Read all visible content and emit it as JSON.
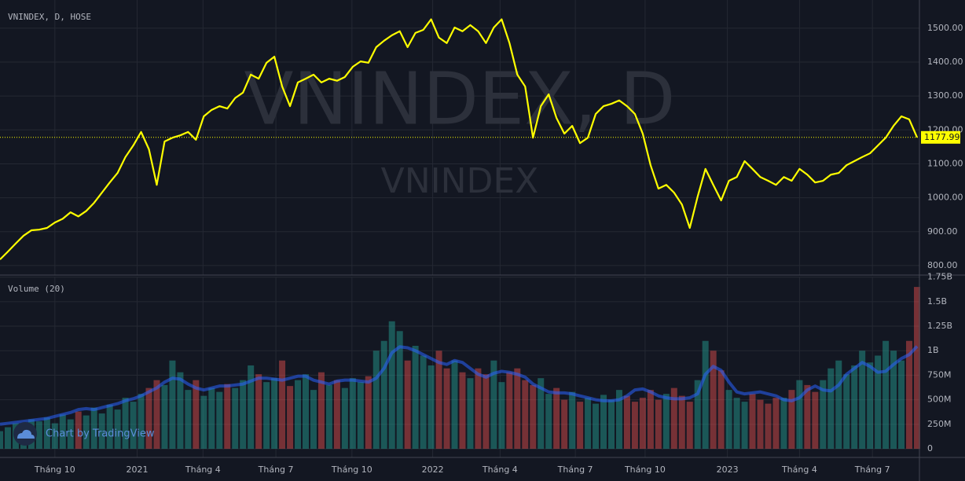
{
  "header": {
    "symbol": "VNINDEX, D, HOSE",
    "watermark": "VNINDEX, D",
    "watermark_sub": "VNINDEX",
    "branding": "Chart by TradingView"
  },
  "chart_data": [
    {
      "type": "line",
      "color": "#ffff00",
      "grid": true,
      "x": [
        0,
        1,
        2,
        3,
        4,
        5,
        6,
        7,
        8,
        9,
        10,
        11,
        12,
        13,
        14,
        15,
        16,
        17,
        18,
        19,
        20,
        21,
        22,
        23,
        24,
        25,
        26,
        27,
        28,
        29,
        30,
        31,
        32,
        33,
        34,
        35,
        36,
        37,
        38,
        39,
        40,
        41,
        42,
        43,
        44,
        45,
        46,
        47,
        48,
        49,
        50,
        51,
        52,
        53,
        54,
        55,
        56,
        57,
        58,
        59,
        60,
        61,
        62,
        63,
        64,
        65,
        66,
        67,
        68,
        69,
        70,
        71,
        72,
        73,
        74,
        75,
        76,
        77,
        78,
        79,
        80,
        81,
        82,
        83,
        84,
        85,
        86,
        87,
        88,
        89,
        90,
        91,
        92,
        93,
        94,
        95,
        96,
        97,
        98,
        99,
        100,
        101,
        102,
        103,
        104,
        105,
        106,
        107,
        108,
        109,
        110,
        111,
        112,
        113,
        114,
        115,
        116,
        117
      ],
      "values": [
        818,
        841,
        865,
        888,
        904,
        906,
        911,
        927,
        938,
        957,
        945,
        961,
        985,
        1015,
        1045,
        1073,
        1120,
        1154,
        1194,
        1143,
        1038,
        1166,
        1177,
        1184,
        1194,
        1171,
        1240,
        1259,
        1270,
        1263,
        1294,
        1310,
        1363,
        1351,
        1398,
        1416,
        1328,
        1270,
        1340,
        1351,
        1363,
        1340,
        1351,
        1345,
        1356,
        1386,
        1402,
        1398,
        1444,
        1463,
        1479,
        1491,
        1444,
        1486,
        1495,
        1526,
        1472,
        1456,
        1502,
        1491,
        1509,
        1491,
        1456,
        1502,
        1526,
        1456,
        1363,
        1328,
        1177,
        1270,
        1305,
        1235,
        1189,
        1212,
        1161,
        1177,
        1247,
        1270,
        1277,
        1287,
        1270,
        1247,
        1189,
        1096,
        1027,
        1038,
        1015,
        980,
        911,
        1003,
        1085,
        1038,
        992,
        1050,
        1061,
        1108,
        1085,
        1061,
        1050,
        1038,
        1061,
        1050,
        1085,
        1068,
        1045,
        1050,
        1068,
        1073,
        1096,
        1108,
        1120,
        1131,
        1154,
        1177,
        1212,
        1240,
        1231,
        1177.99
      ],
      "ylim": [
        772,
        1583
      ],
      "yticks": [
        {
          "value": 800,
          "label": "800.00"
        },
        {
          "value": 900,
          "label": "900.00"
        },
        {
          "value": 1000,
          "label": "1000.00"
        },
        {
          "value": 1100,
          "label": "1100.00"
        },
        {
          "value": 1200,
          "label": "1200.00"
        },
        {
          "value": 1300,
          "label": "1300.00"
        },
        {
          "value": 1400,
          "label": "1400.00"
        },
        {
          "value": 1500,
          "label": "1500.00"
        }
      ]
    },
    {
      "type": "bar",
      "title": "Volume (20)",
      "color_up": "#26a69a",
      "color_down": "#ef5350",
      "ma_color": "#2962ff",
      "grid": true,
      "values": [
        180,
        220,
        260,
        240,
        300,
        280,
        320,
        260,
        350,
        300,
        380,
        340,
        420,
        360,
        450,
        400,
        520,
        480,
        560,
        620,
        700,
        650,
        900,
        780,
        600,
        700,
        540,
        620,
        580,
        660,
        620,
        700,
        850,
        760,
        680,
        720,
        900,
        640,
        700,
        760,
        600,
        780,
        650,
        700,
        620,
        720,
        680,
        740,
        1000,
        1100,
        1300,
        1200,
        900,
        1050,
        950,
        850,
        1000,
        820,
        900,
        780,
        720,
        820,
        760,
        900,
        680,
        780,
        820,
        700,
        650,
        720,
        560,
        620,
        500,
        580,
        480,
        520,
        460,
        550,
        500,
        600,
        540,
        480,
        520,
        600,
        500,
        560,
        620,
        540,
        480,
        700,
        1100,
        1000,
        800,
        600,
        520,
        480,
        560,
        500,
        460,
        520,
        520,
        600,
        700,
        650,
        580,
        700,
        820,
        900,
        760,
        850,
        1000,
        880,
        950,
        1100,
        1000,
        900,
        1100,
        1650
      ],
      "ma_values": [
        250,
        260,
        270,
        280,
        290,
        300,
        310,
        330,
        350,
        370,
        400,
        410,
        400,
        420,
        440,
        460,
        490,
        510,
        540,
        580,
        620,
        680,
        720,
        710,
        660,
        620,
        600,
        620,
        640,
        640,
        650,
        660,
        690,
        720,
        720,
        710,
        700,
        720,
        740,
        740,
        700,
        680,
        660,
        690,
        700,
        700,
        690,
        680,
        720,
        820,
        980,
        1040,
        1030,
        1000,
        960,
        920,
        880,
        860,
        900,
        880,
        820,
        760,
        730,
        770,
        790,
        780,
        760,
        730,
        660,
        620,
        580,
        570,
        570,
        560,
        540,
        520,
        500,
        490,
        490,
        500,
        540,
        600,
        610,
        580,
        540,
        520,
        510,
        510,
        520,
        560,
        760,
        840,
        800,
        680,
        580,
        560,
        570,
        580,
        560,
        540,
        500,
        490,
        520,
        600,
        640,
        600,
        590,
        650,
        760,
        820,
        880,
        840,
        780,
        790,
        860,
        920,
        960,
        1045
      ],
      "ylim": [
        -88,
        1755
      ],
      "yticks": [
        0,
        {
          "value": 250,
          "label": "250M"
        },
        {
          "value": 500,
          "label": "500M"
        },
        {
          "value": 750,
          "label": "750M"
        },
        {
          "value": 1000,
          "label": "1B"
        },
        {
          "value": 1250,
          "label": "1.25B"
        },
        {
          "value": 1500,
          "label": "1.5B"
        },
        {
          "value": 1750,
          "label": "1.75B"
        }
      ],
      "xlim": [
        0,
        117.3
      ],
      "xticks": [
        {
          "value": 7,
          "label": "Tháng 10"
        },
        {
          "value": 17.5,
          "label": "2021"
        },
        {
          "value": 25.9,
          "label": "Tháng 4"
        },
        {
          "value": 35.2,
          "label": "Tháng 7"
        },
        {
          "value": 44.9,
          "label": "Tháng 10"
        },
        {
          "value": 55.2,
          "label": "2022"
        },
        {
          "value": 63.8,
          "label": "Tháng 4"
        },
        {
          "value": 73.4,
          "label": "Tháng 7"
        },
        {
          "value": 82.3,
          "label": "Tháng 10"
        },
        {
          "value": 92.8,
          "label": "2023"
        },
        {
          "value": 102,
          "label": "Tháng 4"
        },
        {
          "value": 111.3,
          "label": "Tháng 7"
        }
      ]
    }
  ]
}
